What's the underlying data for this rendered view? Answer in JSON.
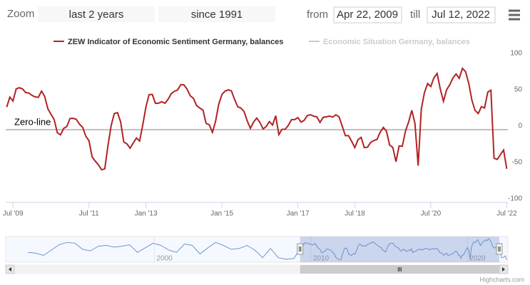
{
  "range_selector": {
    "zoom_label": "Zoom",
    "buttons": [
      "last 2 years",
      "since 1991"
    ],
    "from_label": "from",
    "from": "Apr 22, 2009",
    "till_label": "till",
    "till": "Jul 12, 2022"
  },
  "chart_data": {
    "type": "line",
    "x": [
      "2009-05",
      "2009-06",
      "2009-07",
      "2009-08",
      "2009-09",
      "2009-10",
      "2009-11",
      "2009-12",
      "2010-01",
      "2010-02",
      "2010-03",
      "2010-04",
      "2010-05",
      "2010-06",
      "2010-07",
      "2010-08",
      "2010-09",
      "2010-10",
      "2010-11",
      "2010-12",
      "2011-01",
      "2011-02",
      "2011-03",
      "2011-04",
      "2011-05",
      "2011-06",
      "2011-07",
      "2011-08",
      "2011-09",
      "2011-10",
      "2011-11",
      "2011-12",
      "2012-01",
      "2012-02",
      "2012-03",
      "2012-04",
      "2012-05",
      "2012-06",
      "2012-07",
      "2012-08",
      "2012-09",
      "2012-10",
      "2012-11",
      "2012-12",
      "2013-01",
      "2013-02",
      "2013-03",
      "2013-04",
      "2013-05",
      "2013-06",
      "2013-07",
      "2013-08",
      "2013-09",
      "2013-10",
      "2013-11",
      "2013-12",
      "2014-01",
      "2014-02",
      "2014-03",
      "2014-04",
      "2014-05",
      "2014-06",
      "2014-07",
      "2014-08",
      "2014-09",
      "2014-10",
      "2014-11",
      "2014-12",
      "2015-01",
      "2015-02",
      "2015-03",
      "2015-04",
      "2015-05",
      "2015-06",
      "2015-07",
      "2015-08",
      "2015-09",
      "2015-10",
      "2015-11",
      "2015-12",
      "2016-01",
      "2016-02",
      "2016-03",
      "2016-04",
      "2016-05",
      "2016-06",
      "2016-07",
      "2016-08",
      "2016-09",
      "2016-10",
      "2016-11",
      "2016-12",
      "2017-01",
      "2017-02",
      "2017-03",
      "2017-04",
      "2017-05",
      "2017-06",
      "2017-07",
      "2017-08",
      "2017-09",
      "2017-10",
      "2017-11",
      "2017-12",
      "2018-01",
      "2018-02",
      "2018-03",
      "2018-04",
      "2018-05",
      "2018-06",
      "2018-07",
      "2018-08",
      "2018-09",
      "2018-10",
      "2018-11",
      "2018-12",
      "2019-01",
      "2019-02",
      "2019-03",
      "2019-04",
      "2019-05",
      "2019-06",
      "2019-07",
      "2019-08",
      "2019-09",
      "2019-10",
      "2019-11",
      "2019-12",
      "2020-01",
      "2020-02",
      "2020-03",
      "2020-04",
      "2020-05",
      "2020-06",
      "2020-07",
      "2020-08",
      "2020-09",
      "2020-10",
      "2020-11",
      "2020-12",
      "2021-01",
      "2021-02",
      "2021-03",
      "2021-04",
      "2021-05",
      "2021-06",
      "2021-07",
      "2021-08",
      "2021-09",
      "2021-10",
      "2021-11",
      "2021-12",
      "2022-01",
      "2022-02",
      "2022-03",
      "2022-04",
      "2022-05",
      "2022-06",
      "2022-07"
    ],
    "series": [
      {
        "name": "ZEW Indicator of Economic Sentiment Germany, balances",
        "color": "#b22222",
        "values": [
          31.1,
          44.8,
          39.5,
          56.1,
          57.7,
          56,
          51.1,
          50.4,
          47.2,
          45.1,
          44.5,
          53,
          45.8,
          28.7,
          21.2,
          14,
          -4.3,
          -7.2,
          1.8,
          4.3,
          15.4,
          15.7,
          14.1,
          7.6,
          3.1,
          -9,
          -15.1,
          -37.6,
          -43.3,
          -48.3,
          -55.2,
          -53.8,
          -21.6,
          5.4,
          22.3,
          23.4,
          10.8,
          -16.9,
          -19.6,
          -25.5,
          -18.2,
          -11.5,
          -15.7,
          6.9,
          31.5,
          48.2,
          48.5,
          36.3,
          36.4,
          38.5,
          36.3,
          42,
          49.6,
          52.8,
          54.6,
          62,
          61.7,
          55.7,
          46.6,
          43.2,
          33.1,
          29.8,
          27.1,
          8.6,
          6.9,
          -3.6,
          11.5,
          34.9,
          48.4,
          53,
          54.8,
          53.3,
          41.9,
          31.5,
          29.7,
          25,
          12.1,
          1.9,
          10.4,
          16.1,
          10.2,
          1,
          4.3,
          11.2,
          6.4,
          19.2,
          -6.8,
          0.5,
          0.5,
          6.2,
          13.8,
          13.8,
          16.6,
          10.4,
          12.8,
          19.5,
          20.6,
          18.6,
          17.5,
          10,
          17,
          17.6,
          18.7,
          17.4,
          20.4,
          17.8,
          5.1,
          -8.2,
          -8.2,
          -16.1,
          -24.7,
          -13.7,
          -10.6,
          -24.7,
          -24.1,
          -17.5,
          -15,
          -13.4,
          -3.6,
          3.1,
          -2.1,
          -21.1,
          -24.5,
          -44.1,
          -22.5,
          -22.8,
          -2.1,
          10.7,
          26.7,
          8.7,
          -49.5,
          28.2,
          51,
          63.4,
          59.3,
          71.5,
          77.4,
          56.1,
          39,
          55,
          61.8,
          71.2,
          76.6,
          70.7,
          84.4,
          79.8,
          63.3,
          40.4,
          26.5,
          22.3,
          31.7,
          29.9,
          51.7,
          54.3,
          -39.3,
          -41,
          -34.3,
          -28,
          -53.8
        ]
      }
    ],
    "hidden_series": [
      "Economic Situation Germany, balances"
    ],
    "xlim": [
      "2009-04-22",
      "2022-07-12"
    ],
    "xticks": [
      {
        "value": "2009-07",
        "label": "Jul '09"
      },
      {
        "value": "2011-07",
        "label": "Jul '11"
      },
      {
        "value": "2013-01",
        "label": "Jan '13"
      },
      {
        "value": "2015-01",
        "label": "Jan '15"
      },
      {
        "value": "2017-01",
        "label": "Jan '17"
      },
      {
        "value": "2018-07",
        "label": "Jul '18"
      },
      {
        "value": "2020-07",
        "label": "Jul '20"
      },
      {
        "value": "2022-07",
        "label": "Jul '22"
      }
    ],
    "ylim": [
      -100,
      100
    ],
    "yticks": [
      100,
      50,
      0,
      -50,
      -100
    ],
    "plot_lines": [
      {
        "value": 0,
        "label": "Zero-line"
      }
    ],
    "navigator": {
      "x": [
        "1991-12",
        "1992-06",
        "1992-12",
        "1993-06",
        "1993-12",
        "1994-06",
        "1994-12",
        "1995-06",
        "1995-12",
        "1996-06",
        "1996-12",
        "1997-06",
        "1997-12",
        "1998-06",
        "1998-12",
        "1999-06",
        "1999-12",
        "2000-06",
        "2000-12",
        "2001-06",
        "2001-12",
        "2002-06",
        "2002-12",
        "2003-06",
        "2003-12",
        "2004-06",
        "2004-12",
        "2005-06",
        "2005-12",
        "2006-06",
        "2006-12",
        "2007-06",
        "2007-12",
        "2008-06",
        "2008-12",
        "2009-03"
      ],
      "values": [
        -5,
        -10,
        -25,
        10,
        45,
        60,
        55,
        15,
        5,
        35,
        40,
        30,
        35,
        45,
        -5,
        25,
        55,
        40,
        10,
        -5,
        50,
        40,
        -15,
        25,
        60,
        40,
        15,
        20,
        40,
        10,
        -40,
        20,
        -40,
        -50,
        -45,
        -3
      ],
      "xlim": [
        "1990-07",
        "2022-08"
      ],
      "xticks": [
        2000,
        2010,
        2020
      ]
    }
  },
  "credits": "Highcharts.com"
}
